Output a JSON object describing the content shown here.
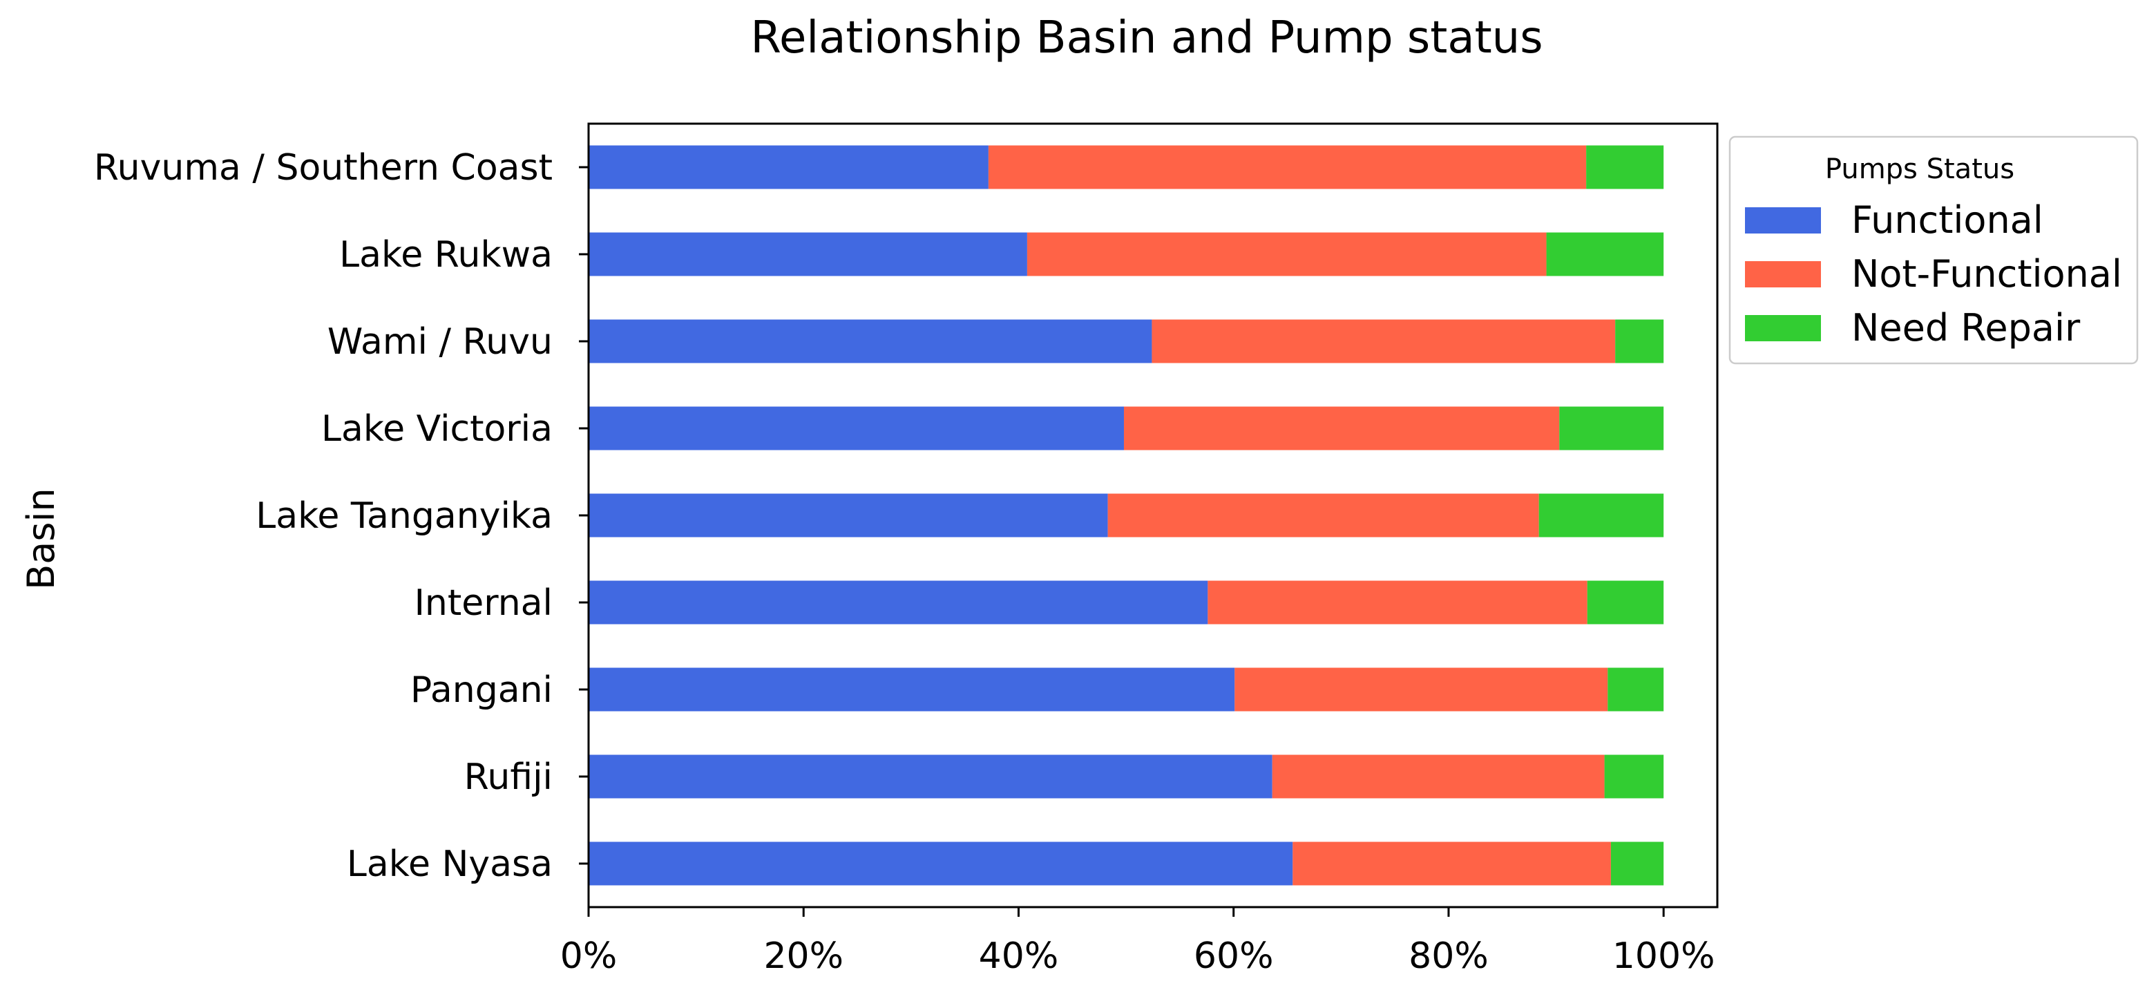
{
  "chart_data": {
    "type": "bar",
    "orientation": "horizontal",
    "stacked": true,
    "title": "Relationship Basin and Pump status",
    "xlabel": "",
    "ylabel": "Basin",
    "xlim": [
      0,
      105
    ],
    "xticks": [
      0,
      20,
      40,
      60,
      80,
      100
    ],
    "xtick_labels": [
      "0%",
      "20%",
      "40%",
      "60%",
      "80%",
      "100%"
    ],
    "grid": false,
    "categories": [
      "Ruvuma / Southern Coast",
      "Lake Rukwa",
      "Wami / Ruvu",
      "Lake Victoria",
      "Lake Tanganyika",
      "Internal",
      "Pangani",
      "Rufiji",
      "Lake Nyasa"
    ],
    "series": [
      {
        "name": "Functional",
        "color": "#4169e1",
        "values": [
          37.2,
          40.8,
          52.4,
          49.8,
          48.3,
          57.6,
          60.1,
          63.6,
          65.5
        ]
      },
      {
        "name": "Not-Functional",
        "color": "#ff6347",
        "values": [
          55.6,
          48.3,
          43.1,
          40.5,
          40.1,
          35.3,
          34.7,
          30.9,
          29.6
        ]
      },
      {
        "name": "Need Repair",
        "color": "#32cd32",
        "values": [
          7.2,
          10.9,
          4.5,
          9.7,
          11.6,
          7.1,
          5.2,
          5.5,
          4.9
        ]
      }
    ],
    "legend": {
      "title": "Pumps Status",
      "position": "outside-upper-right"
    }
  }
}
